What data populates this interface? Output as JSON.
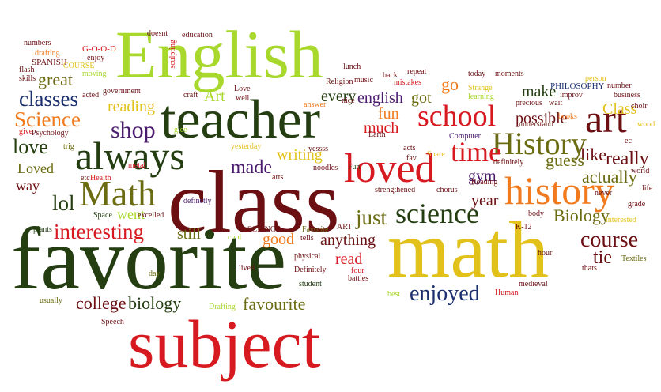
{
  "colors": {
    "background": "#ffffff",
    "dark_red": "#6b0f12",
    "dark_green": "#243e12",
    "red": "#d71920",
    "orange": "#f07a1d",
    "lime": "#a8d82c",
    "olive": "#6b6b12",
    "yellow": "#e2c21a",
    "purple": "#4b1c6e",
    "navy": "#1c2f6e"
  },
  "words": {
    "favorite": "favorite",
    "class": "class",
    "math_lower": "math",
    "english_cap": "English",
    "subject": "subject",
    "teacher": "teacher",
    "loved": "loved",
    "history_lower": "history",
    "always": "always",
    "math_cap": "Math",
    "art": "art",
    "school": "school",
    "history_cap": "History",
    "science": "science",
    "time": "time",
    "classes": "classes",
    "science_cap": "Science",
    "interesting": "interesting",
    "shop": "shop",
    "enjoyed": "enjoyed",
    "course": "course",
    "made": "made",
    "just": "just",
    "lol": "lol",
    "love": "love",
    "great": "great",
    "college": "college",
    "biology": "biology",
    "favourite": "favourite",
    "writing": "writing",
    "Biology": "Biology",
    "really": "really",
    "like": "like",
    "guess": "guess",
    "actually": "actually",
    "tie": "tie",
    "possible": "possible",
    "make": "make",
    "english": "english",
    "got": "got",
    "fun": "fun",
    "much": "much",
    "every": "every",
    "go": "go",
    "Class": "Class",
    "Art": "Art",
    "reading": "reading",
    "Loved": "Loved",
    "way": "way",
    "went": "went",
    "good": "good",
    "still": "still",
    "anything": "anything",
    "read": "read",
    "gym": "gym",
    "year": "year",
    "PHILOSOPHY": "PHILOSOPHY",
    "SPANISH": "SPANISH",
    "GOOD": "G-O-O-D",
    "numbers": "numbers",
    "doesnt": "doesnt",
    "education": "education",
    "drafting": "drafting",
    "enjoy": "enjoy",
    "flash": "flash",
    "skills": "skills",
    "COURSE": "COURSE",
    "moving": "moving",
    "lunch": "lunch",
    "music": "music",
    "back": "back",
    "repeat": "repeat",
    "today": "today",
    "moments": "moments",
    "person": "person",
    "number": "number",
    "business": "business",
    "Religion": "Religion",
    "nice": "nice",
    "mistakes": "mistakes",
    "Strange": "Strange",
    "learning": "learning",
    "precious": "precious",
    "wait": "wait",
    "improv": "improv",
    "choir": "choir",
    "books": "books",
    "understand": "understand",
    "wood": "wood",
    "Health": "Health",
    "Psychology": "Psychology",
    "trig": "trig",
    "etc": "etc",
    "metal": "metal",
    "yesterday": "yesterday",
    "yessss": "yessss",
    "acts": "acts",
    "Spare": "Spare",
    "Computer": "Computer",
    "definitely": "definitely",
    "ec": "ec",
    "world": "world",
    "life": "life",
    "noodles": "noodles",
    "Fun": "Fun",
    "arts": "arts",
    "definetly": "definetly",
    "strengthened": "strengthened",
    "chorus": "chorus",
    "Reading": "Reading",
    "never": "never",
    "grade": "grade",
    "interested": "interested",
    "body": "body",
    "Space": "Space",
    "excelled": "excelled",
    "SCIENCE": "SCIENCE",
    "ART": "ART",
    "Favorite": "Favorite",
    "tells": "tells",
    "K12": "K-12",
    "plants": "plants",
    "cool": "cool",
    "physical": "physical",
    "lived": "lived",
    "Definitely": "Definitely",
    "student": "student",
    "four": "four",
    "battles": "battles",
    "hour": "hour",
    "medieval": "medieval",
    "Textiles": "Textiles",
    "thats": "thats",
    "day": "day",
    "usually": "usually",
    "Drafting": "Drafting",
    "Speech": "Speech",
    "best": "best",
    "Human": "Human",
    "Earth": "Earth",
    "fav": "fav",
    "answer": "answer",
    "glee": "glee",
    "sculpting": "sculpting",
    "government": "government",
    "craft": "craft",
    "acted": "acted",
    "Love": "Love",
    "well": "well",
    "give": "give"
  }
}
